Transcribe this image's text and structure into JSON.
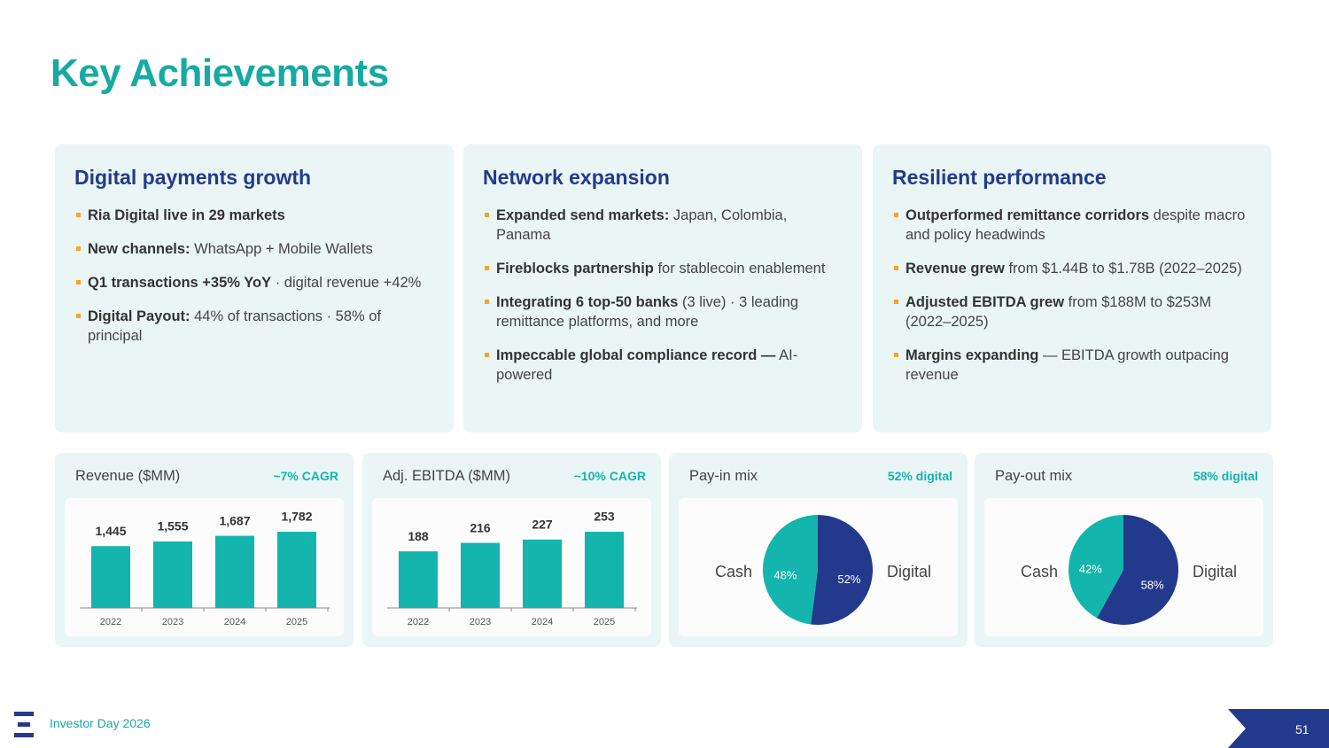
{
  "title": "Key Achievements",
  "cards": [
    {
      "heading": "Digital payments growth",
      "bullets": [
        {
          "bold": "Ria Digital live in 29 markets"
        },
        {
          "bold": "New channels:",
          "text": " WhatsApp + Mobile Wallets"
        },
        {
          "bold": "Q1 transactions +35% YoY",
          "text": " · digital revenue +42%"
        },
        {
          "bold": "Digital Payout:",
          "text": " 44% of transactions · 58% of principal"
        }
      ]
    },
    {
      "heading": "Network expansion",
      "bullets": [
        {
          "bold": "Expanded send markets:",
          "text": " Japan, Colombia, Panama"
        },
        {
          "bold": "Fireblocks partnership",
          "text": " for stablecoin enablement"
        },
        {
          "bold": "Integrating 6 top-50 banks",
          "text": " (3 live) · 3 leading remittance platforms, and more"
        },
        {
          "bold": "Impeccable global compliance record —",
          "text": " AI-powered"
        }
      ]
    },
    {
      "heading": "Resilient performance",
      "bullets": [
        {
          "bold": "Outperformed remittance corridors",
          "text": " despite macro and policy headwinds"
        },
        {
          "bold": "Revenue grew",
          "text": " from $1.44B to $1.78B (2022–2025)"
        },
        {
          "bold": "Adjusted EBITDA grew",
          "text": " from $188M to $253M (2022–2025)"
        },
        {
          "bold": "Margins expanding",
          "text": " — EBITDA growth outpacing revenue"
        }
      ]
    }
  ],
  "chart_data": [
    {
      "type": "bar",
      "title": "Revenue ($MM)",
      "annotation": "~7% CAGR",
      "categories": [
        "2022",
        "2023",
        "2024",
        "2025"
      ],
      "values": [
        1445,
        1555,
        1687,
        1782
      ],
      "value_labels": [
        "1,445",
        "1,555",
        "1,687",
        "1,782"
      ],
      "color": "#13b5ad"
    },
    {
      "type": "bar",
      "title": "Adj. EBITDA ($MM)",
      "annotation": "~10% CAGR",
      "categories": [
        "2022",
        "2023",
        "2024",
        "2025"
      ],
      "values": [
        188,
        216,
        227,
        253
      ],
      "color": "#13b5ad"
    },
    {
      "type": "pie",
      "title": "Pay-in mix",
      "annotation": "52% digital",
      "categories": [
        "Cash",
        "Digital"
      ],
      "values": [
        48,
        52
      ],
      "value_labels": [
        "48%",
        "52%"
      ],
      "colors": [
        "#13b5ad",
        "#233a8c"
      ]
    },
    {
      "type": "pie",
      "title": "Pay-out mix",
      "annotation": "58% digital",
      "categories": [
        "Cash",
        "Digital"
      ],
      "values": [
        42,
        58
      ],
      "value_labels": [
        "42%",
        "58%"
      ],
      "colors": [
        "#13b5ad",
        "#233a8c"
      ]
    }
  ],
  "footer": {
    "event": "Investor Day 2026",
    "page": "51"
  }
}
